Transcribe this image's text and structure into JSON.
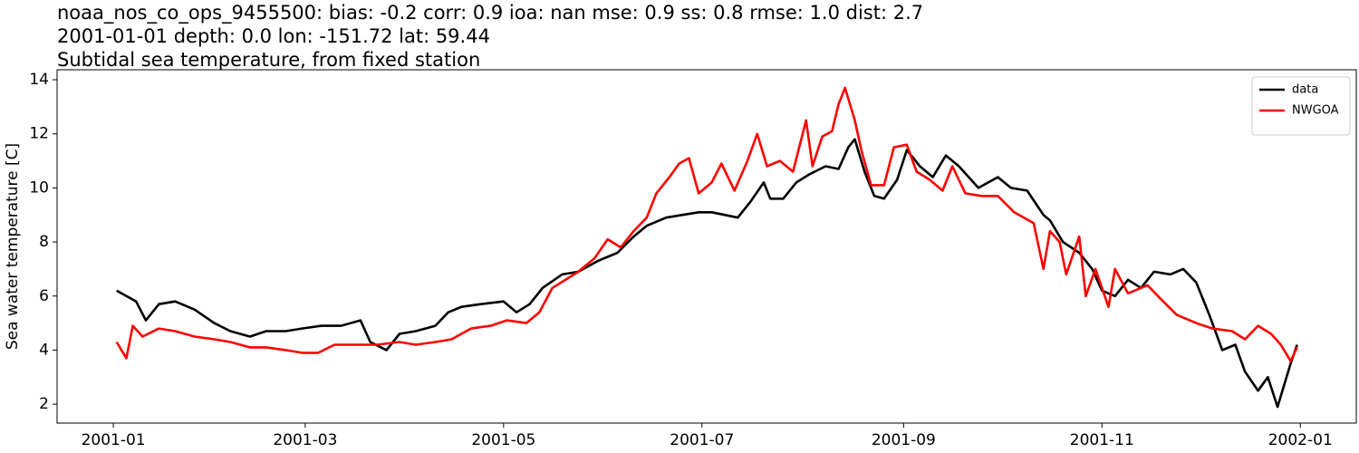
{
  "chart_data": {
    "type": "line",
    "title_lines": [
      "noaa_nos_co_ops_9455500: bias: -0.2  corr: 0.9  ioa: nan  mse: 0.9  ss: 0.8  rmse: 1.0  dist: 2.7",
      "2001-01-01 depth: 0.0 lon: -151.72 lat: 59.44",
      "Subtidal sea temperature, from fixed station"
    ],
    "y_label": "Sea water temperature [C]",
    "xlim": [
      -17.3,
      382.2
    ],
    "xticks": [
      {
        "value": 0,
        "label": "2001-01"
      },
      {
        "value": 59,
        "label": "2001-03"
      },
      {
        "value": 120,
        "label": "2001-05"
      },
      {
        "value": 181,
        "label": "2001-07"
      },
      {
        "value": 243,
        "label": "2001-09"
      },
      {
        "value": 304,
        "label": "2001-11"
      },
      {
        "value": 365,
        "label": "2002-01"
      }
    ],
    "ylim": [
      1.3,
      14.37
    ],
    "yticks": [
      2,
      4,
      6,
      8,
      10,
      12,
      14
    ],
    "legend_position": "upper right",
    "series": [
      {
        "name": "data",
        "color": "#000000",
        "x": [
          1,
          4,
          7,
          10,
          14,
          19,
          25,
          31,
          36,
          42,
          47,
          53,
          58,
          64,
          70,
          76,
          79,
          84,
          88,
          93,
          99,
          103,
          107,
          113,
          120,
          124,
          128,
          132,
          138,
          143,
          149,
          155,
          160,
          164,
          170,
          175,
          180,
          184,
          188,
          192,
          196,
          200,
          202,
          206,
          210,
          214,
          219,
          223,
          226,
          228,
          231,
          234,
          237,
          241,
          244,
          248,
          252,
          256,
          260,
          266,
          272,
          276,
          281,
          286,
          288,
          292,
          297,
          301,
          304,
          308,
          312,
          316,
          320,
          325,
          329,
          333,
          337,
          341,
          345,
          348,
          352,
          355,
          358,
          362,
          364
        ],
        "values": [
          6.2,
          6.0,
          5.8,
          5.1,
          5.7,
          5.8,
          5.5,
          5.0,
          4.7,
          4.5,
          4.7,
          4.7,
          4.8,
          4.9,
          4.9,
          5.1,
          4.3,
          4.0,
          4.6,
          4.7,
          4.9,
          5.4,
          5.6,
          5.7,
          5.8,
          5.4,
          5.7,
          6.3,
          6.8,
          6.9,
          7.3,
          7.6,
          8.2,
          8.6,
          8.9,
          9.0,
          9.1,
          9.1,
          9.0,
          8.9,
          9.5,
          10.2,
          9.6,
          9.6,
          10.2,
          10.5,
          10.8,
          10.7,
          11.5,
          11.8,
          10.6,
          9.7,
          9.6,
          10.3,
          11.4,
          10.8,
          10.4,
          11.2,
          10.8,
          10.0,
          10.4,
          10.0,
          9.9,
          9.0,
          8.8,
          8.0,
          7.6,
          7.0,
          6.2,
          6.0,
          6.6,
          6.3,
          6.9,
          6.8,
          7.0,
          6.5,
          5.3,
          4.0,
          4.2,
          3.2,
          2.5,
          3.0,
          1.9,
          3.5,
          4.2
        ]
      },
      {
        "name": "NWGOA",
        "color": "#ff0000",
        "x": [
          1,
          4,
          6,
          9,
          14,
          19,
          25,
          31,
          36,
          42,
          47,
          53,
          58,
          63,
          68,
          75,
          81,
          88,
          93,
          99,
          104,
          110,
          116,
          121,
          127,
          131,
          135,
          139,
          143,
          148,
          152,
          156,
          160,
          164,
          167,
          171,
          174,
          177,
          180,
          184,
          187,
          191,
          195,
          198,
          201,
          205,
          209,
          213,
          215,
          218,
          221,
          223,
          225,
          228,
          230,
          233,
          237,
          240,
          244,
          247,
          251,
          255,
          258,
          262,
          267,
          272,
          277,
          283,
          286,
          288,
          291,
          293,
          297,
          299,
          302,
          306,
          308,
          312,
          318,
          322,
          327,
          333,
          338,
          344,
          348,
          352,
          356,
          359,
          362,
          364
        ],
        "values": [
          4.3,
          3.7,
          4.9,
          4.5,
          4.8,
          4.7,
          4.5,
          4.4,
          4.3,
          4.1,
          4.1,
          4.0,
          3.9,
          3.9,
          4.2,
          4.2,
          4.2,
          4.3,
          4.2,
          4.3,
          4.4,
          4.8,
          4.9,
          5.1,
          5.0,
          5.4,
          6.3,
          6.6,
          6.9,
          7.4,
          8.1,
          7.8,
          8.4,
          8.9,
          9.8,
          10.4,
          10.9,
          11.1,
          9.8,
          10.2,
          10.9,
          9.9,
          11.0,
          12.0,
          10.8,
          11.0,
          10.6,
          12.5,
          10.8,
          11.9,
          12.1,
          13.1,
          13.7,
          12.5,
          11.4,
          10.1,
          10.1,
          11.5,
          11.6,
          10.6,
          10.3,
          9.9,
          10.8,
          9.8,
          9.7,
          9.7,
          9.1,
          8.7,
          7.0,
          8.4,
          8.0,
          6.8,
          8.2,
          6.0,
          7.0,
          5.6,
          7.0,
          6.1,
          6.4,
          5.9,
          5.3,
          5.0,
          4.8,
          4.7,
          4.4,
          4.9,
          4.6,
          4.2,
          3.6,
          4.1
        ]
      }
    ]
  }
}
